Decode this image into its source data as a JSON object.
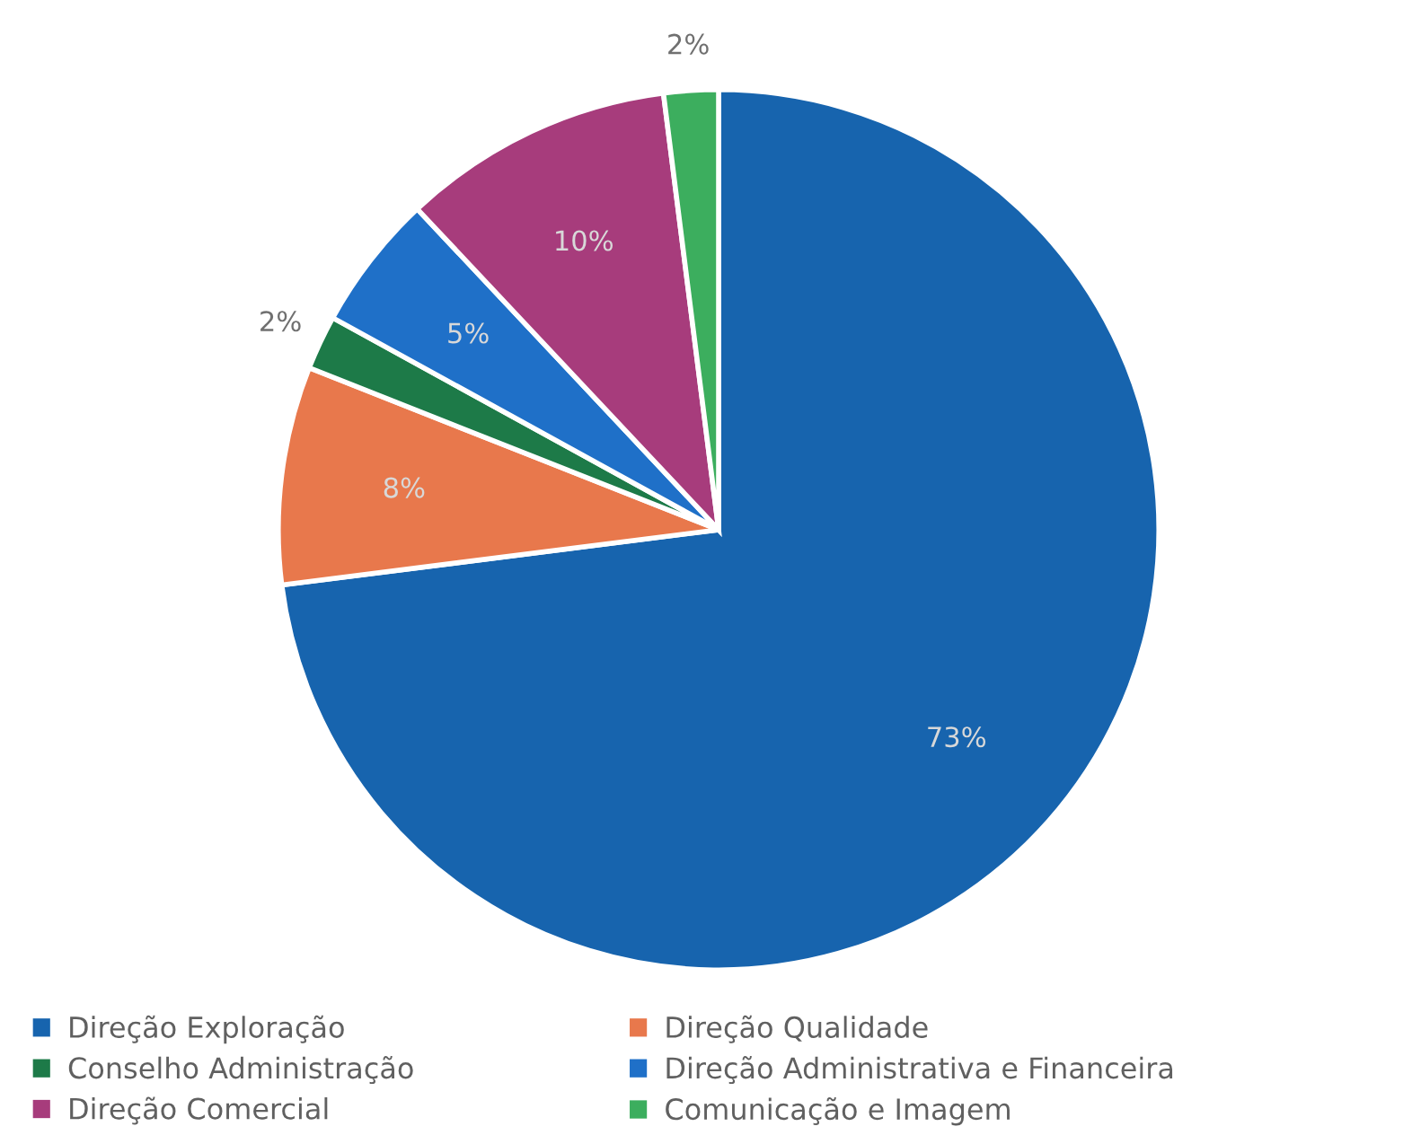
{
  "chart_data": {
    "type": "pie",
    "categories": [
      "Direção Exploração",
      "Direção Qualidade",
      "Conselho Administração",
      "Direção Administrativa e Financeira",
      "Direção Comercial",
      "Comunicação e Imagem"
    ],
    "values": [
      73,
      8,
      2,
      5,
      10,
      2
    ],
    "colors": [
      "#1764ae",
      "#e8784c",
      "#1d7a48",
      "#1f70c8",
      "#a73c7c",
      "#3cae5e"
    ],
    "value_labels": [
      "73%",
      "8%",
      "2%",
      "5%",
      "10%",
      "2%"
    ],
    "legend": "bottom"
  }
}
